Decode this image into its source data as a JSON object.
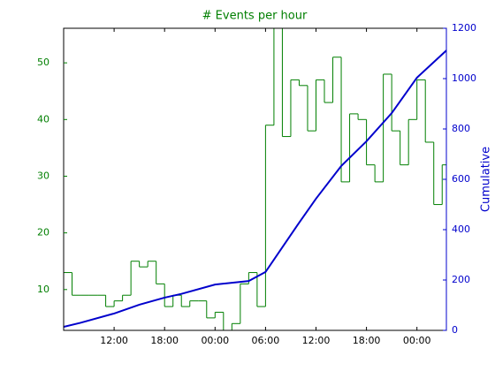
{
  "chart_data": {
    "type": "histogram",
    "title": "# Events per hour",
    "y2label": "Cumulative",
    "bins": [
      6,
      7,
      8,
      9,
      10,
      11,
      12,
      13,
      14,
      15,
      16,
      17,
      18,
      19,
      20,
      21,
      22,
      23,
      24,
      25,
      26,
      27,
      28,
      29,
      30,
      31,
      32,
      33,
      34,
      35,
      36,
      37,
      38,
      39,
      40,
      41,
      42,
      43,
      44,
      45,
      46,
      47,
      48,
      49,
      50,
      51,
      52
    ],
    "values": [
      13,
      9,
      9,
      9,
      9,
      7,
      8,
      9,
      15,
      14,
      15,
      11,
      7,
      9,
      7,
      8,
      8,
      5,
      6,
      2,
      4,
      11,
      13,
      7,
      39,
      59,
      37,
      47,
      46,
      38,
      47,
      43,
      51,
      29,
      41,
      40,
      32,
      29,
      48,
      38,
      32,
      40,
      47,
      36,
      25,
      32
    ],
    "color": "#007f00",
    "line": {
      "x": [
        6,
        8,
        12,
        15,
        18,
        20,
        24,
        28,
        30,
        32,
        34,
        36,
        39,
        42,
        45,
        48,
        51.5
      ],
      "values": [
        14,
        30,
        67,
        102,
        130,
        145,
        182,
        196,
        232,
        330,
        428,
        523,
        653,
        751,
        863,
        1004,
        1112
      ],
      "color": "#0000cc",
      "axis": "y2"
    },
    "xlim": [
      6,
      51.5
    ],
    "xticks": [
      {
        "value": 12,
        "label": "12:00"
      },
      {
        "value": 18,
        "label": "18:00"
      },
      {
        "value": 24,
        "label": "00:00"
      },
      {
        "value": 30,
        "label": "06:00"
      },
      {
        "value": 36,
        "label": "12:00"
      },
      {
        "value": 42,
        "label": "18:00"
      },
      {
        "value": 48,
        "label": "00:00"
      }
    ],
    "ylim": [
      2.8,
      56.1
    ],
    "yticks": [
      10,
      20,
      30,
      40,
      50
    ],
    "y2lim": [
      0,
      1200
    ],
    "y2ticks": [
      0,
      200,
      400,
      600,
      800,
      1000,
      1200
    ]
  }
}
